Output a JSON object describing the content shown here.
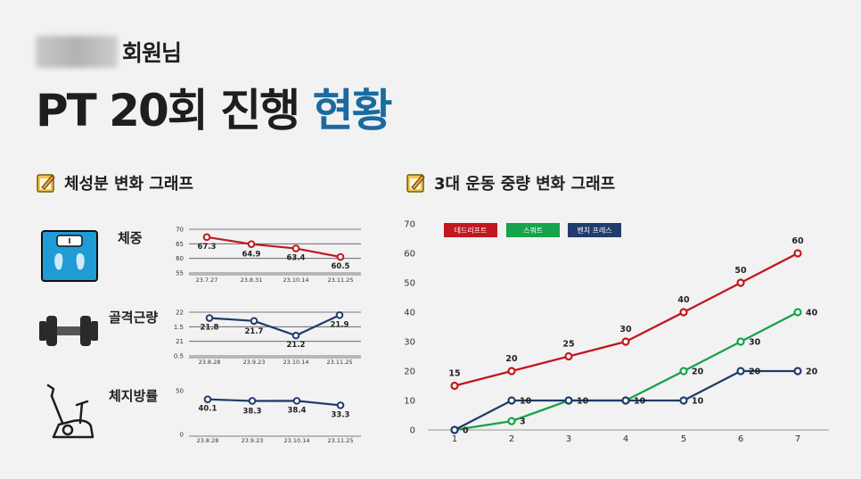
{
  "header": {
    "subtitle": "회원님",
    "title_main": "PT 20회 진행 ",
    "title_highlight": "현황",
    "highlight_color": "#1b6aa0"
  },
  "left_section": {
    "title": "체성분 변화 그래프",
    "icon": "memo-pencil-icon"
  },
  "right_section": {
    "title": "3대 운동 중량 변화 그래프",
    "icon": "memo-pencil-icon"
  },
  "metrics": [
    {
      "label": "체중",
      "icon": "scale-icon"
    },
    {
      "label": "골격근량",
      "icon": "dumbbell-icon"
    },
    {
      "label": "체지방률",
      "icon": "exercise-bike-icon"
    }
  ],
  "chart_data": [
    {
      "type": "line",
      "label": "체중",
      "x": [
        "23.7.27",
        "23.8.31",
        "23.10.14",
        "23.11.25"
      ],
      "y_ticks": [
        "55",
        "60",
        "65",
        "70"
      ],
      "ylim": [
        55,
        70
      ],
      "series": [
        {
          "values": [
            67.3,
            64.9,
            63.4,
            60.5
          ],
          "labels": [
            "67.3",
            "64.9",
            "63.4",
            "60.5"
          ],
          "color": "#c0181e"
        }
      ]
    },
    {
      "type": "line",
      "label": "골격근량",
      "x": [
        "23.8.28",
        "23.9.23",
        "23.10.14",
        "23.11.25"
      ],
      "y_ticks": [
        "20.5",
        "21",
        "21.5",
        "22"
      ],
      "ylim": [
        20.5,
        22
      ],
      "series": [
        {
          "values": [
            21.8,
            21.7,
            21.2,
            21.9
          ],
          "labels": [
            "21.8",
            "21.7",
            "21.2",
            "21.9"
          ],
          "color": "#1f3c6b"
        }
      ]
    },
    {
      "type": "line",
      "label": "체지방률",
      "x": [
        "23.8.28",
        "23.9.23",
        "23.10.14",
        "23.11.25"
      ],
      "y_ticks": [
        "0",
        "50"
      ],
      "ylim": [
        0,
        50
      ],
      "series": [
        {
          "values": [
            40.1,
            38.3,
            38.4,
            33.3
          ],
          "labels": [
            "40.1",
            "38.3",
            "38.4",
            "33.3"
          ],
          "color": "#1f3c6b"
        }
      ]
    },
    {
      "type": "line",
      "label": "3대 운동 중량 변화",
      "x": [
        "1",
        "2",
        "3",
        "4",
        "5",
        "6",
        "7"
      ],
      "y_ticks": [
        "0",
        "10",
        "20",
        "30",
        "40",
        "50",
        "60",
        "70"
      ],
      "ylim": [
        0,
        70
      ],
      "legend_position": "top-left",
      "series": [
        {
          "name": "데드리프트",
          "values": [
            15,
            20,
            25,
            30,
            40,
            50,
            60
          ],
          "labels": [
            "15",
            "20",
            "25",
            "30",
            "40",
            "50",
            "60"
          ],
          "color": "#c0181e"
        },
        {
          "name": "스쿼트",
          "values": [
            0,
            3,
            10,
            10,
            20,
            30,
            40
          ],
          "labels": [
            "",
            "3",
            "",
            "",
            "20",
            "30",
            "40"
          ],
          "color": "#16a34a"
        },
        {
          "name": "벤치 프레스",
          "values": [
            0,
            10,
            10,
            10,
            10,
            20,
            20
          ],
          "labels": [
            "0",
            "10",
            "10",
            "10",
            "10",
            "20",
            "20"
          ],
          "color": "#1f3c6b"
        }
      ]
    }
  ]
}
